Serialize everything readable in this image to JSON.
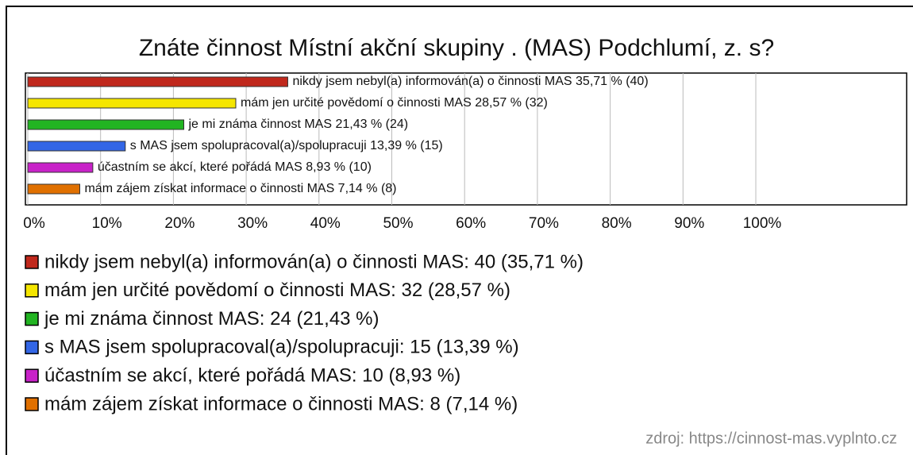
{
  "chart_data": {
    "type": "barh",
    "title": "Znáte činnost Místní akční skupiny . (MAS) Podchlumí, z. s?",
    "categories": [
      "nikdy jsem nebyl(a) informován(a) o činnosti MAS",
      "mám jen určité povědomí o činnosti MAS",
      "je mi známa činnost MAS",
      "s MAS jsem spolupracoval(a)/spolupracuji",
      "účastním se akcí, které pořádá MAS",
      "mám zájem získat informace o činnosti MAS"
    ],
    "values": [
      35.71,
      28.57,
      21.43,
      13.39,
      8.93,
      7.14
    ],
    "value_labels": [
      "nikdy jsem nebyl(a) informován(a) o činnosti MAS 35,71 % (40)",
      "mám jen určité povědomí o činnosti MAS 28,57 % (32)",
      "je mi známa činnost MAS 21,43 % (24)",
      "s MAS jsem spolupracoval(a)/spolupracuji 13,39 % (15)",
      "účastním se akcí, které pořádá MAS 8,93 % (10)",
      "mám zájem získat informace o činnosti MAS 7,14 % (8)"
    ],
    "legend_labels": [
      "nikdy jsem nebyl(a) informován(a) o činnosti MAS: 40 (35,71 %)",
      "mám jen určité povědomí o činnosti MAS: 32 (28,57 %)",
      "je mi známa činnost MAS: 24 (21,43 %)",
      "s MAS jsem spolupracoval(a)/spolupracuji: 15 (13,39 %)",
      "účastním se akcí, které pořádá MAS: 10 (8,93 %)",
      "mám zájem získat informace o činnosti MAS: 8 (7,14 %)"
    ],
    "colors": [
      "#c0281c",
      "#f5e600",
      "#22b422",
      "#3366e6",
      "#c822c8",
      "#e07000"
    ],
    "xlim": [
      0,
      100
    ],
    "xticks": [
      {
        "value": 0,
        "label": "0%"
      },
      {
        "value": 10,
        "label": "10%"
      },
      {
        "value": 20,
        "label": "20%"
      },
      {
        "value": 30,
        "label": "30%"
      },
      {
        "value": 40,
        "label": "40%"
      },
      {
        "value": 50,
        "label": "50%"
      },
      {
        "value": 60,
        "label": "60%"
      },
      {
        "value": 70,
        "label": "70%"
      },
      {
        "value": 80,
        "label": "80%"
      },
      {
        "value": 90,
        "label": "90%"
      },
      {
        "value": 100,
        "label": "100%"
      }
    ],
    "grid": true,
    "source": "zdroj: https://cinnost-mas.vyplnto.cz"
  }
}
